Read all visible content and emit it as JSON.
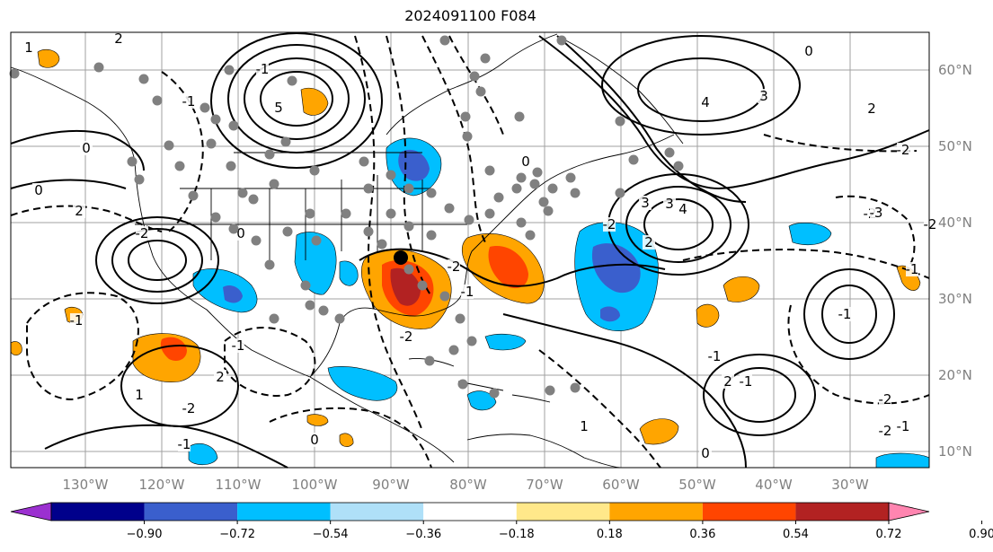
{
  "title": "2024091100 F084",
  "map": {
    "lon_labels": [
      "130°W",
      "120°W",
      "110°W",
      "100°W",
      "90°W",
      "80°W",
      "70°W",
      "60°W",
      "50°W",
      "40°W",
      "30°W"
    ],
    "lat_labels": [
      "60°N",
      "50°N",
      "40°N",
      "30°N",
      "20°N",
      "10°N"
    ],
    "contour_labels": [
      "1",
      "2",
      "5",
      "3",
      "2",
      "-1",
      "0",
      "2",
      "-2",
      "-2",
      "4",
      "3",
      "-2",
      "-1",
      "0",
      "1",
      "2",
      "-2",
      "-2",
      "-3",
      "-2",
      "3",
      "4",
      "-2",
      "2",
      "-1",
      "-1",
      "0",
      "-1",
      "0",
      "-2",
      "-1",
      "-2",
      "-1",
      "0",
      "-1",
      "-2",
      "1",
      "2",
      "-1",
      "0",
      "-1",
      "0",
      "-1"
    ],
    "marker": "tropical-cyclone-position"
  },
  "colorbar": {
    "tick_labels": [
      "−0.90",
      "−0.72",
      "−0.54",
      "−0.36",
      "−0.18",
      "0.18",
      "0.36",
      "0.54",
      "0.72",
      "0.90"
    ],
    "colors": [
      "#9b30d0",
      "#00008b",
      "#3a5fcd",
      "#00bfff",
      "#afe0f8",
      "#ffffff",
      "#ffe88a",
      "#ffa500",
      "#ff4500",
      "#b22222",
      "#ff85b0"
    ]
  }
}
